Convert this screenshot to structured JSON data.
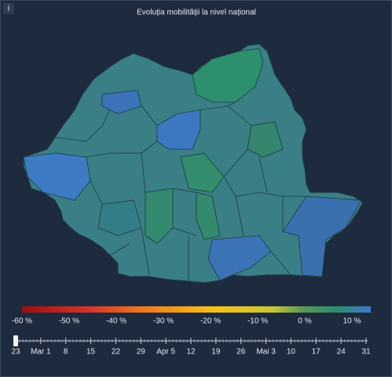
{
  "info_icon": "i",
  "title": "Evoluția mobilității la nivel național",
  "legend": {
    "labels": [
      "-60 %",
      "-50 %",
      "-40 %",
      "-30 %",
      "-20 %",
      "-10 %",
      "0 %",
      "10 %"
    ]
  },
  "timeline": {
    "labels": [
      "23",
      "Mar 1",
      "8",
      "15",
      "22",
      "29",
      "Apr 5",
      "12",
      "19",
      "26",
      "Mai 3",
      "10",
      "17",
      "24",
      "31"
    ]
  }
}
